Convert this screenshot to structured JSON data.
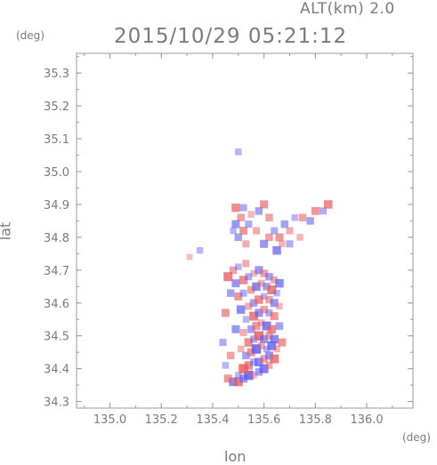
{
  "header": {
    "alt_label": "ALT(km) 2.0",
    "timestamp": "2015/10/29 05:21:12"
  },
  "chart_data": {
    "type": "heatmap",
    "title": "2015/10/29 05:21:12",
    "subtitle": "ALT(km) 2.0",
    "xlabel": "lon",
    "ylabel": "lat",
    "x_unit": "(deg)",
    "y_unit": "(deg)",
    "xlim": [
      134.87,
      136.18
    ],
    "ylim": [
      34.28,
      35.36
    ],
    "x_ticks": [
      135.0,
      135.2,
      135.4,
      135.6,
      135.8,
      136.0
    ],
    "x_tick_labels": [
      "135.0",
      "135.2",
      "135.4",
      "135.6",
      "135.8",
      "136.0"
    ],
    "y_ticks": [
      34.3,
      34.4,
      34.5,
      34.6,
      34.7,
      34.8,
      34.9,
      35.0,
      35.1,
      35.2,
      35.3
    ],
    "y_tick_labels": [
      "34.3",
      "34.4",
      "34.5",
      "34.6",
      "34.7",
      "34.8",
      "34.9",
      "35.0",
      "35.1",
      "35.2",
      "35.3"
    ],
    "grid": false,
    "colors": {
      "positive": "#e85a5a",
      "negative": "#5a5af0",
      "axis": "#9a9a9a",
      "text": "#7a7a7a"
    },
    "cells": [
      [
        135.48,
        34.36,
        -0.7
      ],
      [
        135.5,
        34.36,
        0.8
      ],
      [
        135.52,
        34.37,
        -0.6
      ],
      [
        135.54,
        34.38,
        -0.9
      ],
      [
        135.56,
        34.38,
        0.3
      ],
      [
        135.58,
        34.39,
        -0.5
      ],
      [
        135.46,
        34.37,
        0.6
      ],
      [
        135.6,
        34.4,
        -0.8
      ],
      [
        135.62,
        34.41,
        0.4
      ],
      [
        135.5,
        34.38,
        -0.3
      ],
      [
        135.52,
        34.4,
        0.9
      ],
      [
        135.54,
        34.41,
        0.7
      ],
      [
        135.56,
        34.42,
        -0.4
      ],
      [
        135.58,
        34.42,
        -0.7
      ],
      [
        135.6,
        34.43,
        0.5
      ],
      [
        135.62,
        34.44,
        -0.6
      ],
      [
        135.64,
        34.43,
        0.8
      ],
      [
        135.53,
        34.44,
        -0.5
      ],
      [
        135.55,
        34.45,
        0.6
      ],
      [
        135.57,
        34.46,
        -0.9
      ],
      [
        135.59,
        34.47,
        0.4
      ],
      [
        135.61,
        34.46,
        -0.3
      ],
      [
        135.63,
        34.47,
        -0.8
      ],
      [
        135.65,
        34.46,
        0.3
      ],
      [
        135.54,
        34.48,
        0.7
      ],
      [
        135.56,
        34.49,
        -0.4
      ],
      [
        135.58,
        34.5,
        0.9
      ],
      [
        135.6,
        34.49,
        -0.6
      ],
      [
        135.62,
        34.5,
        0.5
      ],
      [
        135.64,
        34.49,
        -0.7
      ],
      [
        135.52,
        34.51,
        0.4
      ],
      [
        135.55,
        34.52,
        -0.5
      ],
      [
        135.57,
        34.53,
        0.6
      ],
      [
        135.59,
        34.54,
        0.3
      ],
      [
        135.61,
        34.53,
        -0.8
      ],
      [
        135.63,
        34.52,
        0.7
      ],
      [
        135.53,
        34.55,
        -0.3
      ],
      [
        135.56,
        34.56,
        0.8
      ],
      [
        135.58,
        34.57,
        -0.6
      ],
      [
        135.6,
        34.58,
        0.5
      ],
      [
        135.62,
        34.57,
        -0.4
      ],
      [
        135.64,
        34.56,
        0.6
      ],
      [
        135.51,
        34.58,
        -0.7
      ],
      [
        135.54,
        34.59,
        0.4
      ],
      [
        135.56,
        34.6,
        -0.5
      ],
      [
        135.58,
        34.61,
        0.7
      ],
      [
        135.6,
        34.62,
        -0.3
      ],
      [
        135.62,
        34.61,
        0.5
      ],
      [
        135.64,
        34.6,
        -0.6
      ],
      [
        135.66,
        34.59,
        0.3
      ],
      [
        135.5,
        34.62,
        0.6
      ],
      [
        135.52,
        34.63,
        -0.4
      ],
      [
        135.55,
        34.64,
        0.5
      ],
      [
        135.57,
        34.65,
        -0.7
      ],
      [
        135.59,
        34.66,
        0.4
      ],
      [
        135.61,
        34.65,
        -0.5
      ],
      [
        135.63,
        34.64,
        0.8
      ],
      [
        135.65,
        34.63,
        -0.3
      ],
      [
        135.49,
        34.66,
        -0.6
      ],
      [
        135.52,
        34.67,
        0.7
      ],
      [
        135.54,
        34.68,
        -0.4
      ],
      [
        135.56,
        34.69,
        0.3
      ],
      [
        135.58,
        34.7,
        -0.6
      ],
      [
        135.6,
        34.69,
        0.5
      ],
      [
        135.62,
        34.68,
        -0.5
      ],
      [
        135.64,
        34.67,
        0.4
      ],
      [
        135.66,
        34.66,
        -0.7
      ],
      [
        135.48,
        34.7,
        0.5
      ],
      [
        135.5,
        34.71,
        -0.3
      ],
      [
        135.53,
        34.72,
        0.4
      ],
      [
        135.46,
        34.68,
        0.8
      ],
      [
        135.47,
        34.63,
        -0.5
      ],
      [
        135.45,
        34.57,
        0.6
      ],
      [
        135.44,
        34.48,
        -0.4
      ],
      [
        135.47,
        34.44,
        0.5
      ],
      [
        135.49,
        34.52,
        -0.6
      ],
      [
        135.51,
        34.46,
        0.3
      ],
      [
        135.66,
        34.53,
        -0.5
      ],
      [
        135.67,
        34.48,
        0.6
      ],
      [
        135.45,
        34.41,
        -0.3
      ],
      [
        135.5,
        34.8,
        -0.5
      ],
      [
        135.52,
        34.82,
        0.6
      ],
      [
        135.54,
        34.84,
        -0.4
      ],
      [
        135.51,
        34.86,
        0.5
      ],
      [
        135.49,
        34.84,
        -0.6
      ],
      [
        135.53,
        34.78,
        0.4
      ],
      [
        135.48,
        34.82,
        -0.3
      ],
      [
        135.55,
        34.87,
        0.3
      ],
      [
        135.49,
        34.89,
        0.7
      ],
      [
        135.52,
        34.89,
        -0.4
      ],
      [
        135.6,
        34.78,
        -0.6
      ],
      [
        135.62,
        34.8,
        0.5
      ],
      [
        135.64,
        34.82,
        -0.4
      ],
      [
        135.66,
        34.8,
        0.6
      ],
      [
        135.68,
        34.84,
        -0.5
      ],
      [
        135.7,
        34.82,
        0.4
      ],
      [
        135.72,
        34.86,
        -0.3
      ],
      [
        135.62,
        34.86,
        0.5
      ],
      [
        135.6,
        34.9,
        0.6
      ],
      [
        135.58,
        34.88,
        -0.5
      ],
      [
        135.65,
        34.76,
        -0.7
      ],
      [
        135.67,
        34.78,
        0.3
      ],
      [
        135.7,
        34.78,
        -0.4
      ],
      [
        135.75,
        34.86,
        0.5
      ],
      [
        135.8,
        34.88,
        0.6
      ],
      [
        135.83,
        34.88,
        -0.4
      ],
      [
        135.85,
        34.9,
        0.7
      ],
      [
        135.78,
        34.85,
        -0.5
      ],
      [
        135.74,
        34.8,
        0.3
      ],
      [
        135.57,
        34.82,
        0.4
      ],
      [
        135.35,
        34.76,
        -0.3
      ],
      [
        135.31,
        34.74,
        0.2
      ],
      [
        135.5,
        35.06,
        -0.3
      ]
    ]
  }
}
